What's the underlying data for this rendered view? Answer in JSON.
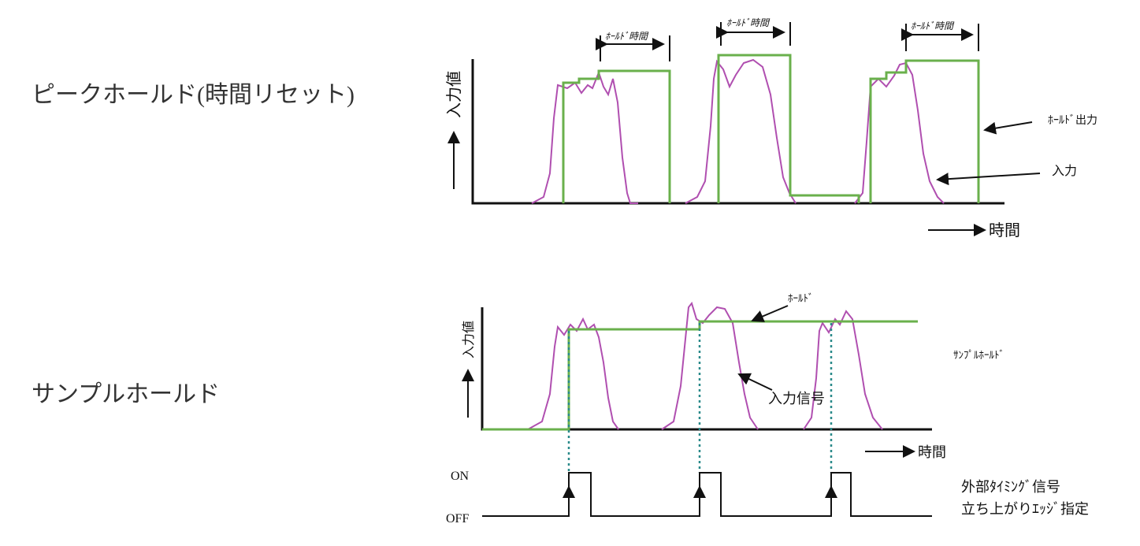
{
  "peak_hold": {
    "title": "ピークホールド(時間リセット)",
    "y_label": "入力値",
    "x_label": "時間",
    "hold_time_labels": [
      "ﾎｰﾙﾄﾞ時間",
      "ﾎｰﾙﾄﾞ時間",
      "ﾎｰﾙﾄﾞ時間"
    ],
    "output_label": "ﾎｰﾙﾄﾞ出力",
    "input_label": "入力"
  },
  "sample_hold": {
    "title": "サンプルホールド",
    "y_label": "入力値",
    "x_label": "時間",
    "hold_label": "ﾎｰﾙﾄﾞ",
    "mode_label": "ｻﾝﾌﾟﾙﾎｰﾙﾄﾞ",
    "input_label": "入力信号",
    "on_label": "ON",
    "off_label": "OFF",
    "trigger_label": [
      "外部ﾀｲﾐﾝｸﾞ信号",
      "立ち上がりｴｯｼﾞ指定"
    ]
  }
}
